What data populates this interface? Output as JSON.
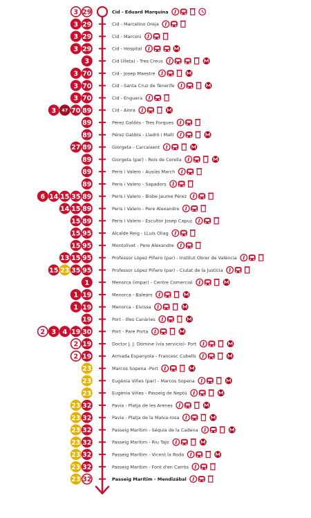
{
  "colors": {
    "accent": "#c8102e",
    "night": "#e5b100",
    "track": "#c8102e",
    "text": "#333333"
  },
  "icon_names": {
    "i": "info-icon",
    "b": "bus-icon",
    "t": "bin-icon",
    "m": "metro-icon",
    "c": "clock-icon"
  },
  "stops": [
    {
      "name": "Cid - Eduard Marquina",
      "bold": true,
      "lines": [
        {
          "n": "3",
          "s": "o"
        },
        {
          "n": "29",
          "s": "o"
        }
      ],
      "icons": [
        "i",
        "b",
        "t",
        "c"
      ]
    },
    {
      "name": "Cid - Marcelino Oreja",
      "lines": [
        {
          "n": "3",
          "s": "f"
        },
        {
          "n": "29",
          "s": "f"
        }
      ],
      "icons": [
        "i",
        "b",
        "t"
      ]
    },
    {
      "name": "Cid - Marconi",
      "lines": [
        {
          "n": "3",
          "s": "f"
        },
        {
          "n": "29",
          "s": "f"
        }
      ],
      "icons": [
        "i",
        "b",
        "t"
      ]
    },
    {
      "name": "Cid - Hospital",
      "lines": [
        {
          "n": "3",
          "s": "f"
        },
        {
          "n": "29",
          "s": "f"
        }
      ],
      "icons": [
        "i",
        "b",
        "b",
        "m"
      ]
    },
    {
      "name": "Cid (illeta) - Tres Creus",
      "lines": [
        {
          "n": "3",
          "s": "f"
        }
      ],
      "icons": [
        "i",
        "b",
        "b",
        "t",
        "m"
      ]
    },
    {
      "name": "Cid - Josep Maestre",
      "lines": [
        {
          "n": "3",
          "s": "f"
        },
        {
          "n": "70",
          "s": "f"
        }
      ],
      "icons": [
        "i",
        "b",
        "t",
        "m"
      ]
    },
    {
      "name": "Cid - Santa Cruz de Tenerife",
      "lines": [
        {
          "n": "3",
          "s": "f"
        },
        {
          "n": "70",
          "s": "f"
        }
      ],
      "icons": [
        "i",
        "b",
        "t",
        "m"
      ]
    },
    {
      "name": "Cid - Enguera",
      "lines": [
        {
          "n": "3",
          "s": "f"
        },
        {
          "n": "70",
          "s": "f"
        }
      ],
      "icons": [
        "i",
        "b",
        "t"
      ]
    },
    {
      "name": "Cid - Aiora",
      "lines": [
        {
          "n": "3",
          "s": "f"
        },
        {
          "n": "47",
          "s": "d"
        },
        {
          "n": "70",
          "s": "f"
        },
        {
          "n": "89",
          "s": "f"
        }
      ],
      "icons": [
        "i",
        "b",
        "t",
        "m"
      ]
    },
    {
      "name": "Pérez Galdós - Tres Forques",
      "lines": [
        {
          "n": "89",
          "s": "f"
        }
      ],
      "icons": [
        "i",
        "b",
        "t"
      ]
    },
    {
      "name": "Pérez Galdós - Lladró i Mallí",
      "lines": [
        {
          "n": "89",
          "s": "f"
        }
      ],
      "icons": [
        "i",
        "b",
        "t",
        "m"
      ]
    },
    {
      "name": "Giorgeta - Carcaixent",
      "lines": [
        {
          "n": "27",
          "s": "f"
        },
        {
          "n": "89",
          "s": "f"
        }
      ],
      "icons": [
        "i",
        "b",
        "t",
        "m"
      ]
    },
    {
      "name": "Giorgeta (par) - Rois de Corella",
      "lines": [
        {
          "n": "89",
          "s": "f"
        }
      ],
      "icons": [
        "i",
        "b",
        "t",
        "m"
      ]
    },
    {
      "name": "Peris i Valero - Ausiàs March",
      "lines": [
        {
          "n": "89",
          "s": "f"
        }
      ],
      "icons": [
        "i",
        "b",
        "t"
      ]
    },
    {
      "name": "Peris i Valero - Sapadors",
      "lines": [
        {
          "n": "89",
          "s": "f"
        }
      ],
      "icons": [
        "i",
        "b",
        "t"
      ]
    },
    {
      "name": "Peris i Valero - Bisbe Jaume Pérez",
      "lines": [
        {
          "n": "6",
          "s": "f"
        },
        {
          "n": "14",
          "s": "f"
        },
        {
          "n": "15",
          "s": "f"
        },
        {
          "n": "35",
          "s": "f"
        },
        {
          "n": "89",
          "s": "f"
        }
      ],
      "icons": [
        "i",
        "b",
        "t"
      ]
    },
    {
      "name": "Peris i Valero - Pere Alexandre",
      "lines": [
        {
          "n": "14",
          "s": "f"
        },
        {
          "n": "15",
          "s": "f"
        },
        {
          "n": "89",
          "s": "f"
        }
      ],
      "icons": [
        "i",
        "b",
        "t"
      ]
    },
    {
      "name": "Peris i Valero - Escultor Josep Capuz",
      "lines": [
        {
          "n": "15",
          "s": "f"
        },
        {
          "n": "89",
          "s": "f"
        }
      ],
      "icons": [
        "i",
        "b",
        "t"
      ]
    },
    {
      "name": "Alcalde Reig - LLuís Oliag",
      "lines": [
        {
          "n": "15",
          "s": "f"
        },
        {
          "n": "95",
          "s": "f"
        }
      ],
      "icons": [
        "i",
        "b",
        "t"
      ]
    },
    {
      "name": "Montolivet - Pere Alexandre",
      "lines": [
        {
          "n": "15",
          "s": "f"
        },
        {
          "n": "95",
          "s": "f"
        }
      ],
      "icons": [
        "i",
        "b",
        "t"
      ]
    },
    {
      "name": "Professor López Piñero (par) - Institut Obrer de València",
      "lines": [
        {
          "n": "13",
          "s": "f"
        },
        {
          "n": "15",
          "s": "f"
        },
        {
          "n": "95",
          "s": "f"
        }
      ],
      "icons": [
        "i",
        "b",
        "t"
      ]
    },
    {
      "name": "Professor López Piñero (par) - Ciutat de la Justícia",
      "lines": [
        {
          "n": "15",
          "s": "f"
        },
        {
          "n": "23",
          "s": "y"
        },
        {
          "n": "35",
          "s": "f"
        },
        {
          "n": "95",
          "s": "f"
        }
      ],
      "icons": [
        "i",
        "b",
        "t"
      ]
    },
    {
      "name": "Menorca (impar) - Centre Comercial",
      "lines": [
        {
          "n": "1",
          "s": "f"
        }
      ],
      "icons": [
        "i",
        "b",
        "t",
        "m"
      ]
    },
    {
      "name": "Menorca - Balears",
      "lines": [
        {
          "n": "1",
          "s": "f"
        },
        {
          "n": "19",
          "s": "f"
        }
      ],
      "icons": [
        "i",
        "b",
        "t",
        "m"
      ]
    },
    {
      "name": "Menorca - Eivissa",
      "lines": [
        {
          "n": "1",
          "s": "f"
        },
        {
          "n": "19",
          "s": "f"
        }
      ],
      "icons": [
        "i",
        "b",
        "t",
        "m"
      ]
    },
    {
      "name": "Port - Illes Canàries",
      "lines": [
        {
          "n": "19",
          "s": "f"
        }
      ],
      "icons": [
        "i",
        "b",
        "t",
        "m"
      ]
    },
    {
      "name": "Port - Pare Porta",
      "lines": [
        {
          "n": "2",
          "s": "o"
        },
        {
          "n": "3",
          "s": "f"
        },
        {
          "n": "4",
          "s": "f"
        },
        {
          "n": "19",
          "s": "f"
        },
        {
          "n": "30",
          "s": "f"
        }
      ],
      "icons": [
        "i",
        "b",
        "t",
        "m"
      ]
    },
    {
      "name": "Doctor J. J. Dòmine (vía servicio)- Port",
      "lines": [
        {
          "n": "2",
          "s": "o"
        },
        {
          "n": "19",
          "s": "f"
        }
      ],
      "icons": [
        "i",
        "b",
        "t",
        "m"
      ]
    },
    {
      "name": "Armada Espanyola - Francesc Cubells",
      "lines": [
        {
          "n": "2",
          "s": "o"
        },
        {
          "n": "19",
          "s": "f"
        }
      ],
      "icons": [
        "i",
        "b",
        "t",
        "m"
      ]
    },
    {
      "name": "Marcos Sopena -Port",
      "lines": [
        {
          "n": "23",
          "s": "y"
        }
      ],
      "icons": [
        "i",
        "b",
        "t",
        "m"
      ]
    },
    {
      "name": "Eugènia Viñes (par) - Marcos Sopena",
      "lines": [
        {
          "n": "23",
          "s": "y"
        }
      ],
      "icons": [
        "i",
        "b",
        "t",
        "m"
      ]
    },
    {
      "name": "Eugènia Viñes - Passeig de Neptú",
      "lines": [
        {
          "n": "23",
          "s": "y"
        }
      ],
      "icons": [
        "i",
        "b",
        "t",
        "m"
      ]
    },
    {
      "name": "Pavia - Platja de les Arenes",
      "lines": [
        {
          "n": "23",
          "s": "y"
        },
        {
          "n": "32",
          "s": "f"
        }
      ],
      "icons": [
        "i",
        "b",
        "t",
        "m"
      ]
    },
    {
      "name": "Pavia - Platja de la Malva-rosa",
      "lines": [
        {
          "n": "23",
          "s": "y"
        },
        {
          "n": "32",
          "s": "f"
        }
      ],
      "icons": [
        "i",
        "b",
        "t",
        "m"
      ]
    },
    {
      "name": "Passeig Marítim - Séquia de la Cadena",
      "lines": [
        {
          "n": "23",
          "s": "y"
        },
        {
          "n": "32",
          "s": "f"
        }
      ],
      "icons": [
        "i",
        "b",
        "t",
        "m"
      ]
    },
    {
      "name": "Passeig Marítim - Riu Tajo",
      "lines": [
        {
          "n": "23",
          "s": "y"
        },
        {
          "n": "32",
          "s": "f"
        }
      ],
      "icons": [
        "i",
        "b",
        "t",
        "m"
      ]
    },
    {
      "name": "Passeig Marítim - Vicent la Roda",
      "lines": [
        {
          "n": "23",
          "s": "y"
        },
        {
          "n": "32",
          "s": "f"
        }
      ],
      "icons": [
        "i",
        "b",
        "t",
        "m"
      ]
    },
    {
      "name": "Passeig Marítim - Font d'en Carròs",
      "lines": [
        {
          "n": "23",
          "s": "y"
        },
        {
          "n": "32",
          "s": "f"
        }
      ],
      "icons": [
        "i",
        "b",
        "t"
      ]
    },
    {
      "name": "Passeig Marítim - Mendizábal",
      "bold": true,
      "lines": [
        {
          "n": "23",
          "s": "y"
        },
        {
          "n": "32",
          "s": "o"
        }
      ],
      "icons": [
        "i",
        "b",
        "t"
      ]
    }
  ]
}
